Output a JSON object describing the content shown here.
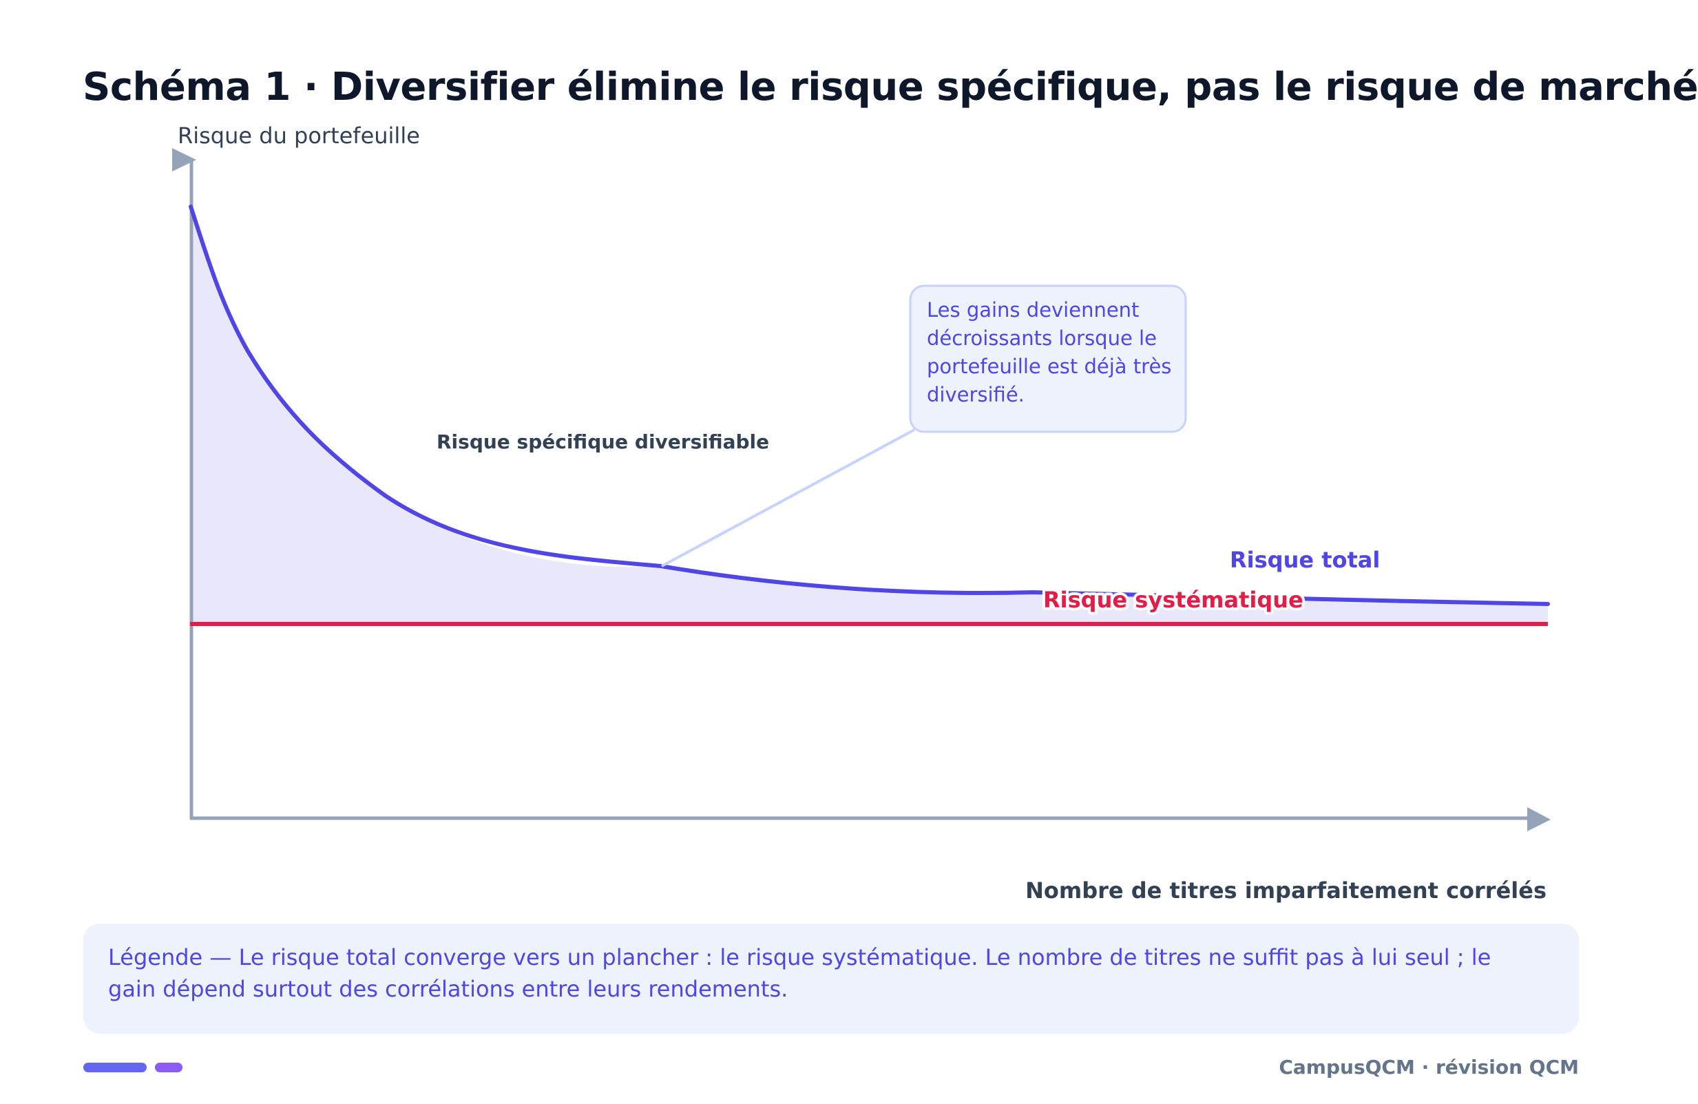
{
  "title": "Schéma 1 · Diversifier élimine le risque spécifique, pas le risque de marché",
  "axes": {
    "y_label": "Risque du portefeuille",
    "x_label": "Nombre de titres imparfaitement corrélés"
  },
  "labels": {
    "specific_area": "Risque spécifique diversifiable",
    "total_risk": "Risque total",
    "systematic_risk": "Risque systématique"
  },
  "callout": {
    "lines": [
      "Les gains deviennent",
      "décroissants lorsque le",
      "portefeuille est déjà très",
      "diversifié."
    ]
  },
  "legend": {
    "text": "Légende — Le risque total converge vers un plancher : le risque systématique. Le nombre de titres ne suffit pas à lui seul ; le gain dépend surtout des corrélations entre leurs rendements."
  },
  "footer": {
    "brand": "CampusQCM · révision QCM"
  },
  "colors": {
    "total_curve": "#4f46e5",
    "systematic_line": "#e11d48",
    "area_fill": "#e9e8fa",
    "axis": "#94a3b8",
    "callout_border": "#c7d2fe",
    "callout_fill": "#eef2fd",
    "footer_pill_1": "#6366f1",
    "footer_pill_2": "#8b5cf6"
  }
}
